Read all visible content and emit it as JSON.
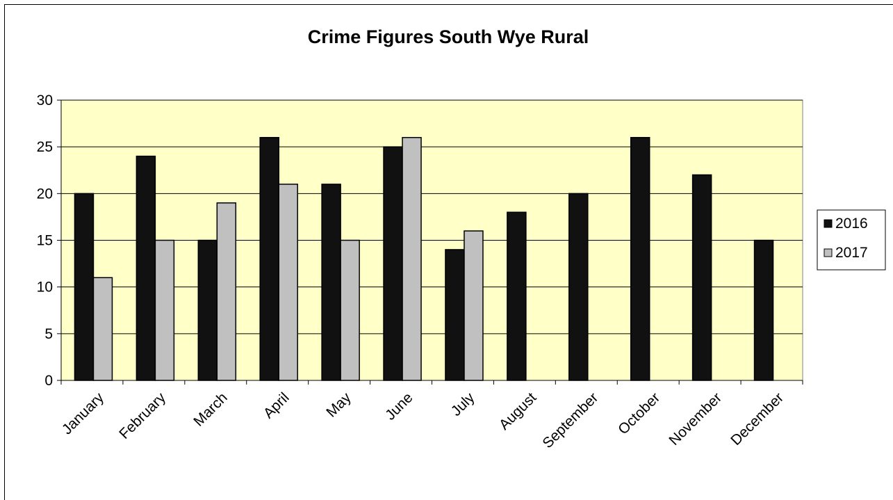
{
  "chart_data": {
    "type": "bar",
    "title": "Crime Figures South Wye Rural",
    "xlabel": "",
    "ylabel": "",
    "ylim": [
      0,
      30
    ],
    "yticks": [
      0,
      5,
      10,
      15,
      20,
      25,
      30
    ],
    "grid": true,
    "legend_position": "right",
    "categories": [
      "January",
      "February",
      "March",
      "April",
      "May",
      "June",
      "July",
      "August",
      "September",
      "October",
      "November",
      "December"
    ],
    "series": [
      {
        "name": "2016",
        "color": "#111111",
        "values": [
          20,
          24,
          15,
          26,
          21,
          25,
          14,
          18,
          20,
          26,
          22,
          15
        ]
      },
      {
        "name": "2017",
        "color": "#c0c0c0",
        "values": [
          11,
          15,
          19,
          21,
          15,
          26,
          16,
          null,
          null,
          null,
          null,
          null
        ]
      }
    ],
    "plot_background": "#ffffc8"
  }
}
